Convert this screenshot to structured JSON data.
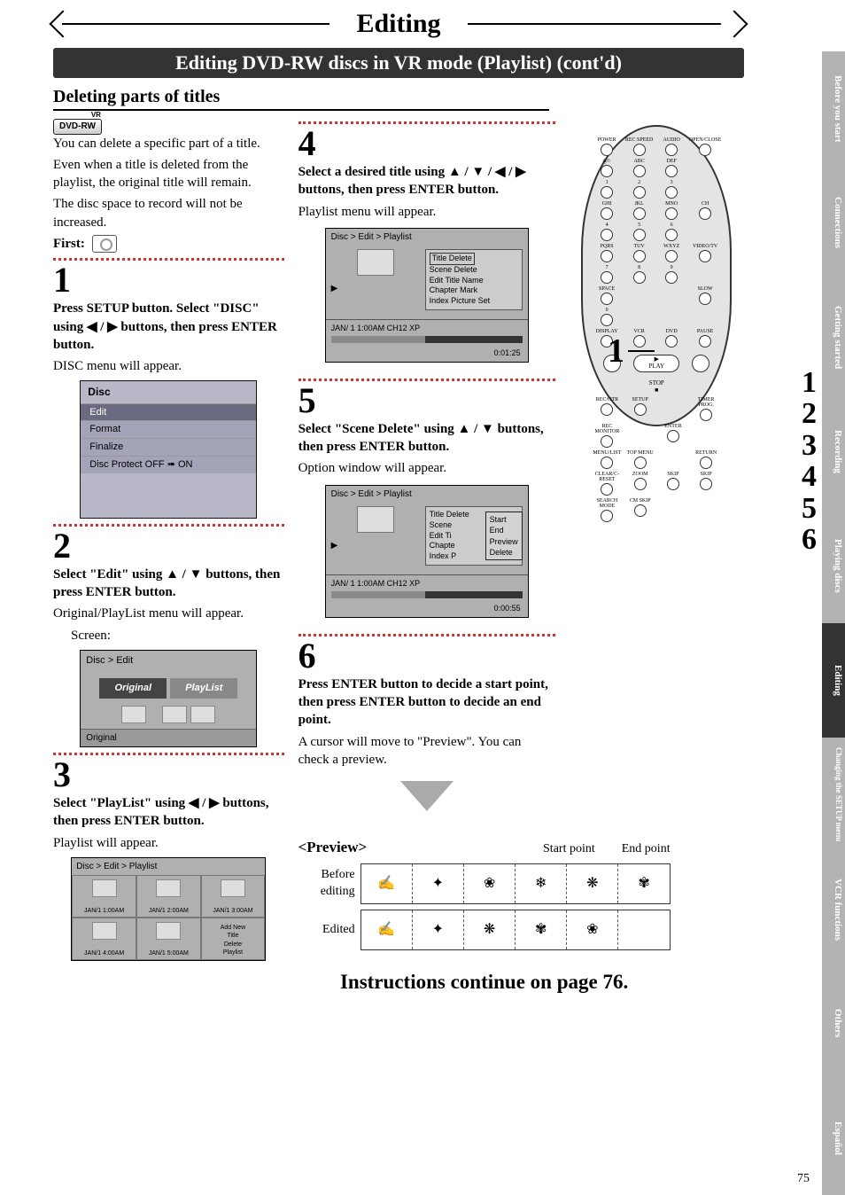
{
  "page_number": "75",
  "main_title": "Editing",
  "subtitle_bar": "Editing DVD-RW discs in VR mode (Playlist) (cont'd)",
  "section_title": "Deleting parts of titles",
  "disc_badge": {
    "label": "DVD-RW",
    "tag": "VR"
  },
  "intro": {
    "p1": "You can delete a specific part of a title.",
    "p2": "Even when a title is deleted from the playlist, the original title will remain.",
    "p3": "The disc space to record will not be increased.",
    "first_label": "First:"
  },
  "steps": {
    "s1": {
      "num": "1",
      "bold": "Press SETUP button. Select \"DISC\" using ◀ / ▶ buttons, then press ENTER button.",
      "text": "DISC menu will appear.",
      "menu": {
        "title": "Disc",
        "rows": [
          "Edit",
          "Format",
          "Finalize",
          "Disc Protect OFF ➠ ON"
        ]
      }
    },
    "s2": {
      "num": "2",
      "bold": "Select \"Edit\" using ▲ / ▼ buttons, then press ENTER button.",
      "text": "Original/PlayList menu will appear.",
      "text2": "Screen:",
      "screen": {
        "crumb": "Disc > Edit",
        "tabs": [
          "Original",
          "PlayList"
        ],
        "footer": "Original"
      }
    },
    "s3": {
      "num": "3",
      "bold": "Select \"PlayList\" using ◀ / ▶ buttons, then press ENTER button.",
      "text": "Playlist will appear.",
      "grid": {
        "crumb": "Disc > Edit > Playlist",
        "cells": [
          "JAN/1  1:00AM",
          "JAN/1  2:00AM",
          "JAN/1  3:00AM",
          "JAN/1  4:00AM",
          "JAN/1  5:00AM"
        ],
        "menu_cell": [
          "Add New",
          "Title",
          "Delete",
          "Playlist"
        ]
      }
    },
    "s4": {
      "num": "4",
      "bold": "Select a desired title using ▲ / ▼ / ◀ / ▶ buttons, then press ENTER button.",
      "text": "Playlist menu will appear.",
      "screen": {
        "crumb": "Disc > Edit > Playlist",
        "list": [
          "Title Delete",
          "Scene Delete",
          "Edit Title Name",
          "Chapter Mark",
          "Index Picture Set"
        ],
        "foot_left": "JAN/ 1  1:00AM  CH12    XP",
        "time": "0:01:25"
      }
    },
    "s5": {
      "num": "5",
      "bold": "Select \"Scene Delete\" using ▲ / ▼ buttons, then press ENTER button.",
      "text": "Option window will appear.",
      "screen": {
        "crumb": "Disc > Edit > Playlist",
        "list": [
          "Title Delete",
          "Scene",
          "Edit Ti",
          "Chapte",
          "Index P"
        ],
        "popup": [
          "Start",
          "End",
          "Preview",
          "Delete"
        ],
        "foot_left": "JAN/ 1  1:00AM  CH12    XP",
        "time": "0:00:55"
      }
    },
    "s6": {
      "num": "6",
      "bold": "Press ENTER button to decide a start point, then press ENTER button to decide an end point.",
      "text": "A cursor will move to \"Preview\". You can check a preview."
    }
  },
  "preview": {
    "title": "<Preview>",
    "start": "Start point",
    "end": "End point",
    "before": "Before editing",
    "edited": "Edited"
  },
  "continue": "Instructions continue on page 76.",
  "side_tabs": [
    "Before you start",
    "Connections",
    "Getting started",
    "Recording",
    "Playing discs",
    "Editing",
    "Changing the SETUP menu",
    "VCR functions",
    "Others",
    "Español"
  ],
  "remote_indicator": "1",
  "big_nums": [
    "1",
    "2",
    "3",
    "4",
    "5",
    "6"
  ],
  "remote_buttons": [
    "POWER",
    "REC SPEED",
    "AUDIO",
    "OPEN/CLOSE",
    "@!:",
    "ABC",
    "DEF",
    "",
    "1",
    "2",
    "3",
    "",
    "GHI",
    "JKL",
    "MNO",
    "CH",
    "4",
    "5",
    "6",
    "",
    "PQRS",
    "TUV",
    "WXYZ",
    "VIDEO/TV",
    "7",
    "8",
    "9",
    "",
    "SPACE",
    "",
    "",
    "SLOW",
    "0",
    "",
    "",
    "",
    "DISPLAY",
    "VCR",
    "DVD",
    "PAUSE"
  ],
  "remote_row2": [
    "REC/OTR",
    "SETUP",
    "",
    "TIMER PROG.",
    "REC MONITOR",
    "",
    "ENTER",
    "",
    "MENU/LIST",
    "TOP MENU",
    "",
    "RETURN",
    "CLEAR/C-RESET",
    "ZOOM",
    "SKIP",
    "SKIP",
    "SEARCH MODE",
    "CM SKIP",
    "",
    ""
  ]
}
